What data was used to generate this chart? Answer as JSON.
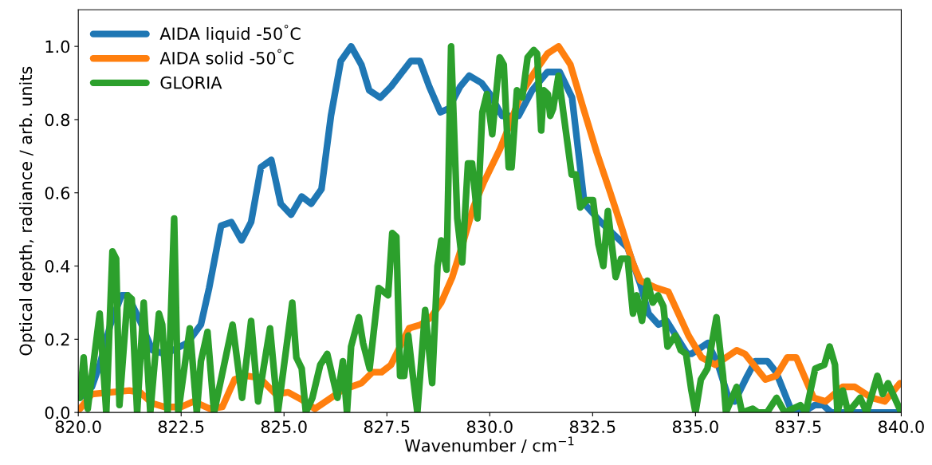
{
  "chart_data": {
    "type": "line",
    "xlabel": "Wavenumber / cm$^{−1}$",
    "ylabel": "Optical depth, radiance / arb. units",
    "xlim": [
      820,
      840
    ],
    "ylim": [
      0,
      1.1
    ],
    "xticks": [
      {
        "value": 820,
        "label": "820.0"
      },
      {
        "value": 822.5,
        "label": "822.5"
      },
      {
        "value": 825,
        "label": "825.0"
      },
      {
        "value": 827.5,
        "label": "827.5"
      },
      {
        "value": 830,
        "label": "830.0"
      },
      {
        "value": 832.5,
        "label": "832.5"
      },
      {
        "value": 835,
        "label": "835.0"
      },
      {
        "value": 837.5,
        "label": "837.5"
      },
      {
        "value": 840,
        "label": "840.0"
      }
    ],
    "yticks": [
      {
        "value": 0,
        "label": "0.0"
      },
      {
        "value": 0.2,
        "label": "0.2"
      },
      {
        "value": 0.4,
        "label": "0.4"
      },
      {
        "value": 0.6,
        "label": "0.6"
      },
      {
        "value": 0.8,
        "label": "0.8"
      },
      {
        "value": 1.0,
        "label": "1.0"
      }
    ],
    "grid": false,
    "legend": "top left",
    "marker": "none",
    "line_style": "solid",
    "series": [
      {
        "name": "AIDA liquid -50$^{°}$C",
        "color": "#1f77b4",
        "x": [
          820.04,
          820.33,
          820.52,
          820.78,
          821.05,
          821.2,
          821.5,
          821.8,
          822.1,
          822.3,
          822.65,
          822.98,
          823.18,
          823.47,
          823.72,
          823.97,
          824.2,
          824.44,
          824.69,
          824.92,
          825.17,
          825.43,
          825.66,
          825.91,
          826.14,
          826.38,
          826.63,
          826.88,
          827.07,
          827.34,
          827.6,
          828.08,
          828.3,
          828.53,
          828.8,
          829.0,
          829.28,
          829.5,
          829.8,
          830.0,
          830.3,
          830.7,
          831.03,
          831.4,
          831.7,
          832.0,
          832.3,
          832.7,
          833.35,
          833.66,
          833.86,
          834.1,
          834.3,
          834.8,
          834.9,
          835.3,
          835.55,
          835.8,
          835.95,
          836.26,
          836.45,
          836.75,
          836.96,
          837.35,
          837.6,
          837.9,
          838.1,
          838.3,
          839.0,
          840.0
        ],
        "values": [
          0.04,
          0.07,
          0.13,
          0.24,
          0.32,
          0.32,
          0.25,
          0.17,
          0.16,
          0.17,
          0.19,
          0.24,
          0.34,
          0.51,
          0.52,
          0.47,
          0.52,
          0.67,
          0.69,
          0.57,
          0.54,
          0.59,
          0.57,
          0.61,
          0.81,
          0.96,
          1.0,
          0.95,
          0.88,
          0.86,
          0.89,
          0.96,
          0.96,
          0.89,
          0.82,
          0.83,
          0.89,
          0.92,
          0.9,
          0.87,
          0.81,
          0.81,
          0.88,
          0.93,
          0.93,
          0.86,
          0.57,
          0.52,
          0.45,
          0.35,
          0.27,
          0.24,
          0.25,
          0.16,
          0.16,
          0.19,
          0.13,
          0.04,
          0.03,
          0.1,
          0.14,
          0.14,
          0.11,
          0.0,
          0.0,
          0.02,
          0.02,
          0.0,
          0.0,
          0.0
        ]
      },
      {
        "name": "AIDA solid -50$^{°}$C",
        "color": "#ff7f0e",
        "x": [
          820.04,
          820.33,
          820.78,
          821.24,
          821.5,
          821.8,
          822.1,
          822.5,
          822.8,
          823.1,
          823.2,
          823.5,
          823.8,
          824.07,
          824.4,
          824.8,
          825.1,
          825.43,
          825.75,
          826.08,
          826.4,
          826.63,
          826.88,
          827.15,
          827.37,
          827.6,
          828.04,
          828.33,
          828.57,
          828.82,
          829.09,
          829.34,
          829.6,
          829.86,
          830.25,
          830.5,
          830.76,
          831.09,
          831.4,
          831.67,
          831.96,
          832.25,
          832.6,
          832.93,
          833.22,
          833.47,
          833.66,
          834.05,
          834.34,
          834.83,
          835.15,
          835.48,
          836.0,
          836.2,
          836.7,
          836.96,
          837.23,
          837.45,
          837.87,
          838.16,
          838.58,
          838.87,
          839.28,
          839.6,
          839.97
        ],
        "values": [
          0.01,
          0.05,
          0.055,
          0.06,
          0.055,
          0.025,
          0.015,
          0.015,
          0.03,
          0.015,
          0.01,
          0.015,
          0.09,
          0.1,
          0.095,
          0.05,
          0.055,
          0.035,
          0.01,
          0.035,
          0.06,
          0.07,
          0.08,
          0.11,
          0.11,
          0.13,
          0.23,
          0.24,
          0.26,
          0.3,
          0.37,
          0.46,
          0.56,
          0.63,
          0.72,
          0.79,
          0.87,
          0.93,
          0.98,
          1.0,
          0.95,
          0.84,
          0.71,
          0.6,
          0.5,
          0.41,
          0.36,
          0.34,
          0.33,
          0.21,
          0.15,
          0.13,
          0.17,
          0.16,
          0.09,
          0.1,
          0.15,
          0.15,
          0.04,
          0.03,
          0.07,
          0.07,
          0.04,
          0.03,
          0.08
        ]
      },
      {
        "name": "GLORIA",
        "color": "#2ca02c",
        "x": [
          820.04,
          820.13,
          820.23,
          820.52,
          820.68,
          820.83,
          820.92,
          821.0,
          821.2,
          821.3,
          821.43,
          821.59,
          821.75,
          821.96,
          822.04,
          822.17,
          822.33,
          822.43,
          822.71,
          822.88,
          822.98,
          823.14,
          823.3,
          823.75,
          823.98,
          824.2,
          824.37,
          824.66,
          824.85,
          825.2,
          825.3,
          825.43,
          825.53,
          825.69,
          825.88,
          826.05,
          826.3,
          826.43,
          826.53,
          826.63,
          826.82,
          826.92,
          827.08,
          827.3,
          827.53,
          827.63,
          827.73,
          827.82,
          827.92,
          828.02,
          828.11,
          828.24,
          828.43,
          828.6,
          828.73,
          828.82,
          828.95,
          829.06,
          829.21,
          829.33,
          829.47,
          829.57,
          829.7,
          829.82,
          829.93,
          830.06,
          830.24,
          830.34,
          830.46,
          830.53,
          830.66,
          830.79,
          830.92,
          831.07,
          831.15,
          831.25,
          831.31,
          831.41,
          831.47,
          831.54,
          831.67,
          831.8,
          831.99,
          832.09,
          832.2,
          832.35,
          832.51,
          832.64,
          832.76,
          832.87,
          833.06,
          833.19,
          833.35,
          833.48,
          833.57,
          833.7,
          833.83,
          833.96,
          834.09,
          834.22,
          834.32,
          834.51,
          834.64,
          834.77,
          834.9,
          835.0,
          835.13,
          835.29,
          835.51,
          835.67,
          835.74,
          836.0,
          836.13,
          836.39,
          836.52,
          836.74,
          836.97,
          837.17,
          837.55,
          837.68,
          837.91,
          838.13,
          838.26,
          838.39,
          838.45,
          838.58,
          838.71,
          839.0,
          839.16,
          839.42,
          839.55,
          839.68,
          840.0
        ],
        "values": [
          0.04,
          0.15,
          0.01,
          0.27,
          0.0,
          0.44,
          0.42,
          0.02,
          0.32,
          0.31,
          0.0,
          0.3,
          0.0,
          0.27,
          0.24,
          0.0,
          0.53,
          0.0,
          0.23,
          0.0,
          0.14,
          0.22,
          0.0,
          0.24,
          0.04,
          0.25,
          0.03,
          0.23,
          0.0,
          0.3,
          0.15,
          0.12,
          0.0,
          0.04,
          0.13,
          0.16,
          0.04,
          0.14,
          0.0,
          0.18,
          0.26,
          0.19,
          0.12,
          0.34,
          0.32,
          0.49,
          0.48,
          0.1,
          0.1,
          0.21,
          0.12,
          0.0,
          0.28,
          0.08,
          0.4,
          0.47,
          0.39,
          1.0,
          0.53,
          0.41,
          0.68,
          0.68,
          0.53,
          0.82,
          0.87,
          0.76,
          0.97,
          0.95,
          0.67,
          0.67,
          0.88,
          0.86,
          0.97,
          0.99,
          0.98,
          0.77,
          0.88,
          0.87,
          0.81,
          0.83,
          0.92,
          0.81,
          0.65,
          0.65,
          0.56,
          0.58,
          0.58,
          0.46,
          0.4,
          0.55,
          0.37,
          0.42,
          0.42,
          0.27,
          0.32,
          0.25,
          0.36,
          0.3,
          0.32,
          0.29,
          0.18,
          0.21,
          0.17,
          0.16,
          0.06,
          0.0,
          0.09,
          0.12,
          0.26,
          0.1,
          0.0,
          0.07,
          0.0,
          0.01,
          0.0,
          0.0,
          0.04,
          0.0,
          0.02,
          0.0,
          0.12,
          0.13,
          0.18,
          0.13,
          0.0,
          0.06,
          0.0,
          0.04,
          0.0,
          0.1,
          0.05,
          0.08,
          0.0
        ]
      }
    ]
  }
}
